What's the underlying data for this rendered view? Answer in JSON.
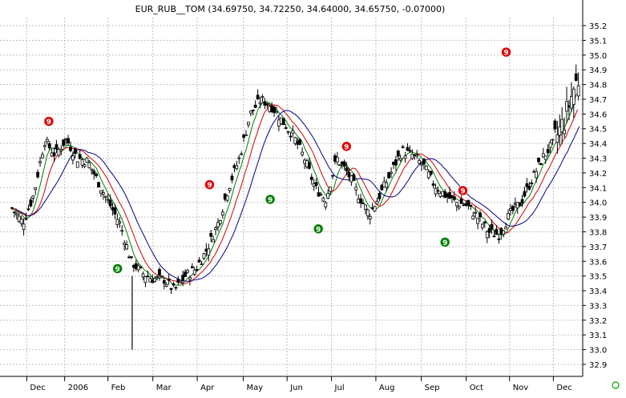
{
  "chart_data": {
    "type": "candlestick",
    "title": "EUR_RUB__TOM (34.69750, 34.72250, 34.64000, 34.65750, -0.07000)",
    "ylim": [
      32.8,
      35.35
    ],
    "y_ticks": [
      "35.2",
      "35.1",
      "35.0",
      "34.9",
      "34.8",
      "34.7",
      "34.6",
      "34.5",
      "34.4",
      "34.3",
      "34.2",
      "34.1",
      "34.0",
      "33.9",
      "33.8",
      "33.7",
      "33.6",
      "33.5",
      "33.4",
      "33.3",
      "33.2",
      "33.1",
      "33.0",
      "32.9"
    ],
    "x_labels": [
      {
        "label": "Dec",
        "t": 0.045
      },
      {
        "label": "2006",
        "t": 0.115
      },
      {
        "label": "Feb",
        "t": 0.195
      },
      {
        "label": "Mar",
        "t": 0.278
      },
      {
        "label": "Apr",
        "t": 0.36
      },
      {
        "label": "May",
        "t": 0.445
      },
      {
        "label": "Jun",
        "t": 0.526
      },
      {
        "label": "Jul",
        "t": 0.608
      },
      {
        "label": "Aug",
        "t": 0.69
      },
      {
        "label": "Sep",
        "t": 0.774
      },
      {
        "label": "Oct",
        "t": 0.857
      },
      {
        "label": "Nov",
        "t": 0.937
      },
      {
        "label": "Dec",
        "t": 1.018
      }
    ],
    "price_path": [
      [
        0.0,
        33.96
      ],
      [
        0.02,
        33.86
      ],
      [
        0.04,
        34.05
      ],
      [
        0.06,
        34.42
      ],
      [
        0.08,
        34.32
      ],
      [
        0.1,
        34.43
      ],
      [
        0.12,
        34.3
      ],
      [
        0.14,
        34.28
      ],
      [
        0.17,
        34.06
      ],
      [
        0.2,
        33.85
      ],
      [
        0.22,
        33.6
      ],
      [
        0.24,
        33.52
      ],
      [
        0.26,
        33.48
      ],
      [
        0.28,
        33.48
      ],
      [
        0.3,
        33.4
      ],
      [
        0.32,
        33.5
      ],
      [
        0.34,
        33.55
      ],
      [
        0.36,
        33.68
      ],
      [
        0.38,
        33.85
      ],
      [
        0.4,
        34.1
      ],
      [
        0.42,
        34.3
      ],
      [
        0.44,
        34.6
      ],
      [
        0.46,
        34.7
      ],
      [
        0.48,
        34.65
      ],
      [
        0.5,
        34.55
      ],
      [
        0.52,
        34.45
      ],
      [
        0.54,
        34.3
      ],
      [
        0.56,
        34.1
      ],
      [
        0.58,
        34.02
      ],
      [
        0.6,
        34.3
      ],
      [
        0.62,
        34.2
      ],
      [
        0.64,
        34.05
      ],
      [
        0.66,
        33.92
      ],
      [
        0.68,
        34.05
      ],
      [
        0.7,
        34.2
      ],
      [
        0.72,
        34.35
      ],
      [
        0.74,
        34.32
      ],
      [
        0.76,
        34.25
      ],
      [
        0.78,
        34.12
      ],
      [
        0.8,
        34.05
      ],
      [
        0.82,
        34.0
      ],
      [
        0.84,
        33.98
      ],
      [
        0.86,
        33.9
      ],
      [
        0.88,
        33.8
      ],
      [
        0.9,
        33.78
      ],
      [
        0.92,
        33.92
      ],
      [
        0.94,
        34.0
      ],
      [
        0.96,
        34.15
      ],
      [
        0.98,
        34.3
      ],
      [
        1.0,
        34.4
      ],
      [
        1.02,
        34.55
      ],
      [
        1.04,
        34.8
      ],
      [
        1.06,
        34.9
      ],
      [
        1.08,
        34.95
      ],
      [
        1.1,
        34.8
      ],
      [
        1.12,
        34.67
      ]
    ],
    "signals": [
      {
        "t": 0.068,
        "y": 34.55,
        "color": "red",
        "label": "9"
      },
      {
        "t": 0.195,
        "y": 33.55,
        "color": "green",
        "label": "9"
      },
      {
        "t": 0.365,
        "y": 34.12,
        "color": "red",
        "label": "9"
      },
      {
        "t": 0.477,
        "y": 34.02,
        "color": "green",
        "label": "9"
      },
      {
        "t": 0.566,
        "y": 33.82,
        "color": "green",
        "label": "9"
      },
      {
        "t": 0.618,
        "y": 34.38,
        "color": "red",
        "label": "9"
      },
      {
        "t": 0.8,
        "y": 33.73,
        "color": "green",
        "label": "9"
      },
      {
        "t": 0.833,
        "y": 34.08,
        "color": "red",
        "label": "9"
      },
      {
        "t": 0.913,
        "y": 35.02,
        "color": "red",
        "label": "9"
      }
    ],
    "grid": true,
    "grid_color": "#c0c0c0",
    "ma_colors": [
      "#008000",
      "#d40000",
      "#00008b"
    ],
    "signal_colors": {
      "red": "#e00000",
      "green": "#008000"
    },
    "watermark_icon": "smiley-icon",
    "watermark_color": "#00a000"
  }
}
